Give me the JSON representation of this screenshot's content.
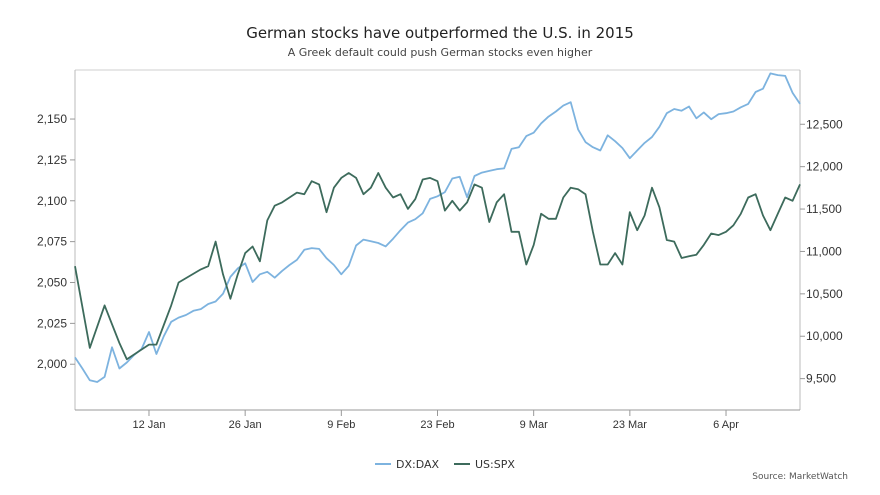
{
  "chart_data": {
    "type": "line",
    "title": "German stocks have outperformed the U.S. in 2015",
    "subtitle": "A Greek default could push German stocks even higher",
    "source": "Source: MarketWatch",
    "x_ticks": [
      "12 Jan",
      "26 Jan",
      "9 Feb",
      "23 Feb",
      "9 Mar",
      "23 Mar",
      "6 Apr"
    ],
    "left_axis": {
      "ticks": [
        "2,000",
        "2,025",
        "2,050",
        "2,075",
        "2,100",
        "2,125",
        "2,150"
      ],
      "range": [
        1972,
        2180
      ]
    },
    "right_axis": {
      "ticks": [
        "9,500",
        "10,000",
        "10,500",
        "11,000",
        "11,500",
        "12,000",
        "12,500"
      ],
      "range": [
        9130,
        13140
      ]
    },
    "grid": false,
    "legend_position": "bottom",
    "colors": {
      "DX:DAX": "#7db3df",
      "US:SPX": "#3d6b5c"
    },
    "series": [
      {
        "name": "DX:DAX",
        "axis": "right",
        "x": [
          0,
          1,
          2,
          3,
          4,
          5,
          6,
          7,
          8,
          9,
          10,
          11,
          12,
          13,
          14,
          15,
          16,
          17,
          18,
          19,
          20,
          21,
          22,
          23,
          24,
          25,
          26,
          27,
          28,
          29,
          30,
          31,
          32,
          33,
          34,
          35,
          36,
          37,
          38,
          39,
          40,
          41,
          42,
          43,
          44,
          45,
          46,
          47,
          48,
          49,
          50,
          51,
          52,
          53,
          54,
          55,
          56,
          57,
          58,
          59,
          60,
          61,
          62,
          63,
          64,
          65,
          66,
          67,
          68,
          69,
          70,
          71,
          72,
          73,
          74,
          75,
          76,
          77,
          78,
          79,
          80,
          81,
          82,
          83,
          84,
          85,
          86,
          87,
          88,
          89,
          90,
          91,
          92,
          93,
          94,
          95,
          96,
          97,
          98
        ],
        "values": [
          9750,
          9620,
          9480,
          9460,
          9520,
          9870,
          9620,
          9690,
          9780,
          9850,
          10050,
          9790,
          10000,
          10170,
          10220,
          10250,
          10300,
          10320,
          10380,
          10410,
          10500,
          10700,
          10800,
          10860,
          10640,
          10730,
          10760,
          10690,
          10770,
          10840,
          10900,
          11020,
          11040,
          11030,
          10920,
          10840,
          10730,
          10830,
          11070,
          11140,
          11120,
          11100,
          11060,
          11150,
          11250,
          11340,
          11380,
          11450,
          11620,
          11650,
          11700,
          11860,
          11880,
          11640,
          11890,
          11930,
          11950,
          11970,
          11980,
          12210,
          12230,
          12360,
          12400,
          12510,
          12590,
          12650,
          12720,
          12760,
          12440,
          12290,
          12230,
          12190,
          12370,
          12300,
          12220,
          12100,
          12190,
          12280,
          12350,
          12470,
          12630,
          12680,
          12660,
          12710,
          12570,
          12640,
          12560,
          12620,
          12630,
          12650,
          12700,
          12740,
          12880,
          12920,
          13100,
          13080,
          13070,
          12870,
          12740
        ]
      },
      {
        "name": "US:SPX",
        "axis": "left",
        "x": [
          0,
          2,
          4,
          6,
          7,
          10,
          11,
          12,
          13,
          14,
          17,
          18,
          19,
          20,
          21,
          22,
          23,
          24,
          25,
          26,
          27,
          28,
          30,
          31,
          32,
          33,
          34,
          35,
          36,
          37,
          38,
          39,
          40,
          41,
          42,
          43,
          44,
          45,
          46,
          47,
          48,
          49,
          50,
          51,
          52,
          53,
          54,
          55,
          56,
          57,
          58,
          59,
          60,
          61,
          62,
          63,
          64,
          65,
          66,
          67,
          68,
          69,
          70,
          71,
          72,
          73,
          74,
          75,
          76,
          77,
          78,
          79,
          80,
          81,
          82,
          83,
          84,
          85,
          86,
          87,
          88,
          89,
          90,
          91,
          92,
          93,
          94,
          95,
          96,
          97,
          98
        ],
        "values": [
          2060,
          2010,
          2036,
          2013,
          2003,
          2012,
          2012,
          2024,
          2036,
          2050,
          2058,
          2060,
          2075,
          2055,
          2040,
          2055,
          2068,
          2072,
          2063,
          2088,
          2097,
          2099,
          2105,
          2104,
          2112,
          2110,
          2093,
          2108,
          2114,
          2117,
          2114,
          2104,
          2108,
          2117,
          2108,
          2102,
          2104,
          2095,
          2101,
          2113,
          2114,
          2112,
          2094,
          2100,
          2094,
          2099,
          2110,
          2108,
          2087,
          2099,
          2104,
          2081,
          2081,
          2061,
          2073,
          2092,
          2089,
          2089,
          2102,
          2108,
          2107,
          2104,
          2081,
          2061,
          2061,
          2068,
          2061,
          2093,
          2082,
          2091,
          2108,
          2096,
          2076,
          2075,
          2065,
          2066,
          2067,
          2073,
          2080,
          2079,
          2081,
          2085,
          2092,
          2102,
          2104,
          2091,
          2082,
          2092,
          2102,
          2100,
          2110
        ]
      }
    ]
  }
}
